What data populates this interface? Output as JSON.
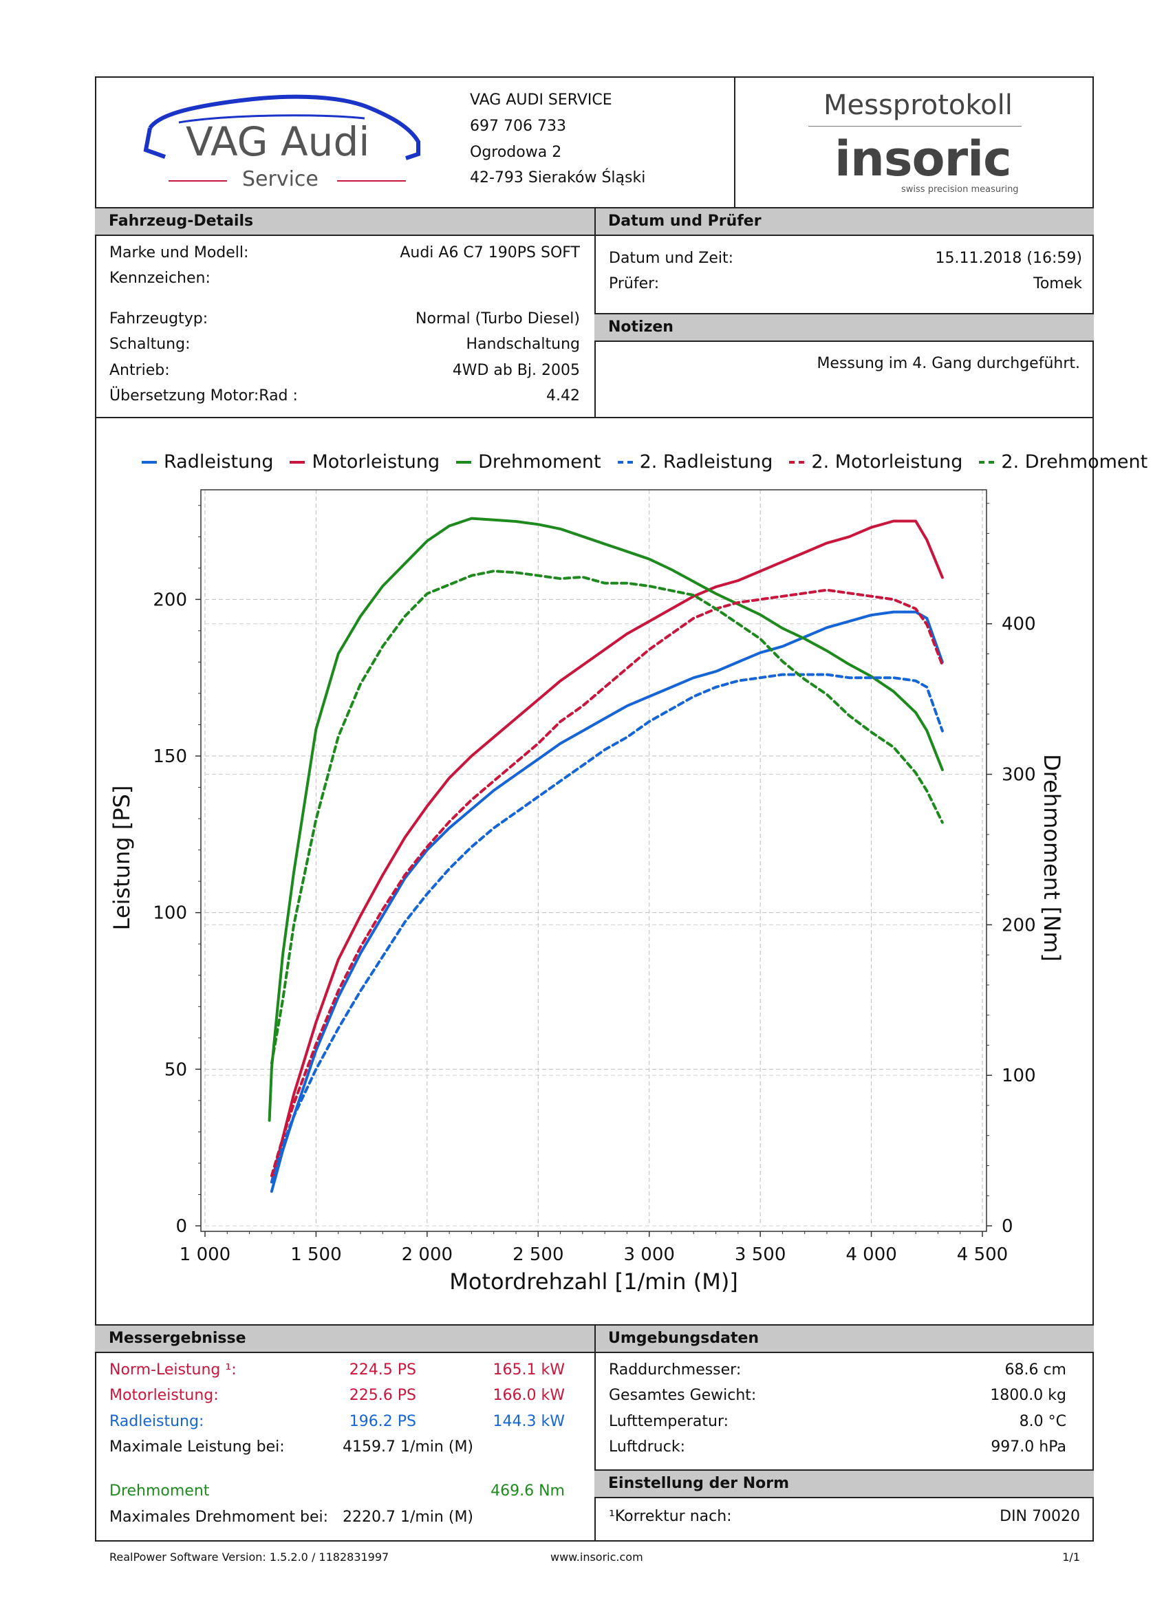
{
  "header": {
    "logo_main": "VAG Audi",
    "logo_sub": "Service",
    "company": [
      "VAG AUDI SERVICE",
      "697 706 733",
      "Ogrodowa 2",
      "42-793 Sieraków Śląski"
    ],
    "title": "Messprotokoll",
    "brand": "insoric",
    "brand_sub": "swiss precision measuring"
  },
  "vehicle": {
    "section_title": "Fahrzeug-Details",
    "rows": [
      {
        "label": "Marke und Modell:",
        "value": "Audi A6 C7 190PS SOFT"
      },
      {
        "label": "Kennzeichen:",
        "value": ""
      },
      {
        "label": "Fahrzeugtyp:",
        "value": "Normal (Turbo Diesel)"
      },
      {
        "label": "Schaltung:",
        "value": "Handschaltung"
      },
      {
        "label": "Antrieb:",
        "value": "4WD ab Bj. 2005"
      },
      {
        "label": "Übersetzung Motor:Rad :",
        "value": "4.42"
      }
    ]
  },
  "date_section": {
    "section_title": "Datum und Prüfer",
    "rows": [
      {
        "label": "Datum und Zeit:",
        "value": "15.11.2018 (16:59)"
      },
      {
        "label": "Prüfer:",
        "value": "Tomek"
      }
    ]
  },
  "notes": {
    "section_title": "Notizen",
    "text": "Messung im 4. Gang durchgeführt."
  },
  "results": {
    "section_title": "Messergebnisse",
    "norm": {
      "label": "Norm-Leistung ¹:",
      "ps": "224.5 PS",
      "kw": "165.1 kW"
    },
    "motor": {
      "label": "Motorleistung:",
      "ps": "225.6 PS",
      "kw": "166.0 kW"
    },
    "rad": {
      "label": "Radleistung:",
      "ps": "196.2 PS",
      "kw": "144.3 kW"
    },
    "max_power_at": {
      "label": "Maximale Leistung bei:",
      "value": "4159.7 1/min (M)"
    },
    "torque": {
      "label": "Drehmoment",
      "value": "469.6 Nm"
    },
    "max_torque_at": {
      "label": "Maximales Drehmoment bei:",
      "value": "2220.7 1/min (M)"
    }
  },
  "environment": {
    "section_title": "Umgebungsdaten",
    "rows": [
      {
        "label": "Raddurchmesser:",
        "value": "68.6 cm"
      },
      {
        "label": "Gesamtes Gewicht:",
        "value": "1800.0 kg"
      },
      {
        "label": "Lufttemperatur:",
        "value": "8.0 °C"
      },
      {
        "label": "Luftdruck:",
        "value": "997.0 hPa"
      }
    ]
  },
  "norm_settings": {
    "section_title": "Einstellung der Norm",
    "label": "¹Korrektur nach:",
    "value": "DIN 70020"
  },
  "footer": {
    "version": "RealPower Software Version: 1.5.2.0 / 1182831997",
    "website": "www.insoric.com",
    "page": "1/1"
  },
  "colors": {
    "red": "#c8163c",
    "blue": "#1565d6",
    "green": "#1e8a1e"
  },
  "chart_data": {
    "type": "line",
    "xlabel": "Motordrehzahl [1/min (M)]",
    "ylabel": "Leistung [PS]",
    "y2label": "Drehmoment [Nm]",
    "xlim": [
      1000,
      4500
    ],
    "ylim": [
      0,
      235
    ],
    "y2lim": [
      0,
      489
    ],
    "xticks": [
      1000,
      1500,
      2000,
      2500,
      3000,
      3500,
      4000,
      4500
    ],
    "xtick_labels": [
      "1 000",
      "1 500",
      "2 000",
      "2 500",
      "3 000",
      "3 500",
      "4 000",
      "4 500"
    ],
    "yticks": [
      0,
      50,
      100,
      150,
      200
    ],
    "y2ticks": [
      0,
      100,
      200,
      300,
      400
    ],
    "grid": true,
    "legend_position": "top",
    "series": [
      {
        "name": "Radleistung",
        "axis": "left",
        "style": "solid",
        "color": "#1565d6",
        "x": [
          1300,
          1350,
          1400,
          1500,
          1600,
          1700,
          1800,
          1900,
          2000,
          2100,
          2200,
          2300,
          2400,
          2500,
          2600,
          2700,
          2800,
          2900,
          3000,
          3100,
          3200,
          3300,
          3400,
          3500,
          3600,
          3700,
          3800,
          3900,
          4000,
          4100,
          4200,
          4250,
          4320
        ],
        "y": [
          11,
          24,
          35,
          56,
          73,
          87,
          99,
          111,
          120,
          127,
          133,
          139,
          144,
          149,
          154,
          158,
          162,
          166,
          169,
          172,
          175,
          177,
          180,
          183,
          185,
          188,
          191,
          193,
          195,
          196,
          196,
          194,
          180
        ]
      },
      {
        "name": "Motorleistung",
        "axis": "left",
        "style": "solid",
        "color": "#c8163c",
        "x": [
          1300,
          1350,
          1400,
          1500,
          1600,
          1700,
          1800,
          1900,
          2000,
          2100,
          2200,
          2300,
          2400,
          2500,
          2600,
          2700,
          2800,
          2900,
          3000,
          3100,
          3200,
          3300,
          3400,
          3500,
          3600,
          3700,
          3800,
          3900,
          4000,
          4100,
          4200,
          4250,
          4320
        ],
        "y": [
          14,
          28,
          42,
          65,
          85,
          99,
          112,
          124,
          134,
          143,
          150,
          156,
          162,
          168,
          174,
          179,
          184,
          189,
          193,
          197,
          201,
          204,
          206,
          209,
          212,
          215,
          218,
          220,
          223,
          225,
          225,
          219,
          207
        ]
      },
      {
        "name": "Drehmoment",
        "axis": "right",
        "style": "solid",
        "color": "#1e8a1e",
        "x": [
          1290,
          1300,
          1350,
          1400,
          1500,
          1600,
          1700,
          1800,
          1900,
          2000,
          2100,
          2200,
          2300,
          2400,
          2500,
          2600,
          2700,
          2800,
          2900,
          3000,
          3100,
          3200,
          3300,
          3400,
          3500,
          3600,
          3700,
          3800,
          3900,
          4000,
          4100,
          4200,
          4250,
          4320
        ],
        "y": [
          70,
          105,
          180,
          235,
          330,
          380,
          405,
          425,
          440,
          455,
          465,
          470,
          469,
          468,
          466,
          463,
          458,
          453,
          448,
          443,
          436,
          428,
          420,
          413,
          406,
          397,
          390,
          382,
          373,
          365,
          355,
          341,
          329,
          303
        ]
      },
      {
        "name": "2. Radleistung",
        "axis": "left",
        "style": "dashed",
        "color": "#1565d6",
        "x": [
          1300,
          1350,
          1400,
          1500,
          1600,
          1700,
          1800,
          1900,
          2000,
          2100,
          2200,
          2300,
          2400,
          2500,
          2600,
          2700,
          2800,
          2900,
          3000,
          3100,
          3200,
          3300,
          3400,
          3500,
          3600,
          3700,
          3800,
          3900,
          4000,
          4100,
          4200,
          4250,
          4320
        ],
        "y": [
          14,
          26,
          35,
          50,
          63,
          75,
          86,
          97,
          106,
          114,
          121,
          127,
          132,
          137,
          142,
          147,
          152,
          156,
          161,
          165,
          169,
          172,
          174,
          175,
          176,
          176,
          176,
          175,
          175,
          175,
          174,
          172,
          158
        ]
      },
      {
        "name": "2. Motorleistung",
        "axis": "left",
        "style": "dashed",
        "color": "#c8163c",
        "x": [
          1300,
          1350,
          1400,
          1500,
          1600,
          1700,
          1800,
          1900,
          2000,
          2100,
          2200,
          2300,
          2400,
          2500,
          2600,
          2700,
          2800,
          2900,
          3000,
          3100,
          3200,
          3300,
          3400,
          3500,
          3600,
          3700,
          3800,
          3900,
          4000,
          4100,
          4200,
          4250,
          4320
        ],
        "y": [
          16,
          28,
          39,
          58,
          75,
          89,
          101,
          112,
          121,
          129,
          136,
          142,
          148,
          154,
          161,
          166,
          172,
          178,
          184,
          189,
          194,
          197,
          199,
          200,
          201,
          202,
          203,
          202,
          201,
          200,
          197,
          192,
          179
        ]
      },
      {
        "name": "2. Drehmoment",
        "axis": "right",
        "style": "dashed",
        "color": "#1e8a1e",
        "x": [
          1300,
          1350,
          1400,
          1500,
          1600,
          1700,
          1800,
          1900,
          2000,
          2100,
          2200,
          2300,
          2400,
          2500,
          2600,
          2700,
          2800,
          2900,
          3000,
          3100,
          3200,
          3300,
          3400,
          3500,
          3600,
          3700,
          3800,
          3900,
          4000,
          4100,
          4200,
          4250,
          4320
        ],
        "y": [
          108,
          150,
          200,
          270,
          325,
          360,
          385,
          405,
          420,
          426,
          432,
          435,
          434,
          432,
          430,
          431,
          427,
          427,
          425,
          422,
          419,
          410,
          400,
          390,
          375,
          363,
          353,
          339,
          328,
          318,
          301,
          289,
          268
        ]
      }
    ]
  }
}
